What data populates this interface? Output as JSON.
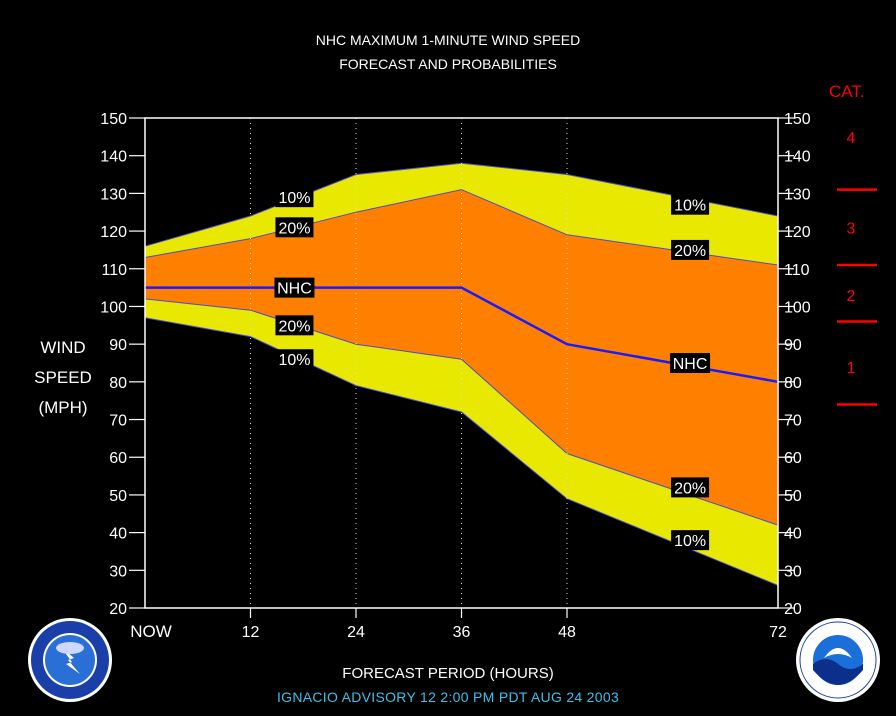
{
  "title_line1": "NHC MAXIMUM 1-MINUTE WIND SPEED",
  "title_line2": "FORECAST AND PROBABILITIES",
  "ylabel_lines": [
    "WIND",
    "SPEED",
    "(MPH)"
  ],
  "xlabel": "FORECAST PERIOD (HOURS)",
  "advisory": "IGNACIO   ADVISORY  12 2:00  PM  PDT  AUG 24  2003",
  "category_header": "CAT.",
  "categories": [
    {
      "label": "4",
      "value": 145
    },
    {
      "label": "3",
      "value": 121
    },
    {
      "label": "2",
      "value": 103
    },
    {
      "label": "1",
      "value": 84
    }
  ],
  "category_thresholds": [
    131,
    111,
    96,
    74
  ],
  "colors": {
    "background": "#000000",
    "outer_band": "#e8e800",
    "inner_band": "#ff8000",
    "nhc_line": "#1a1aff",
    "band_edge": "#4b4bd6",
    "category": "#ff0000",
    "advisory_text": "#3ec0e8"
  },
  "logos": {
    "left": "nws-logo",
    "right": "noaa-logo"
  },
  "chart_data": {
    "type": "area",
    "x": [
      0,
      12,
      24,
      36,
      48,
      72
    ],
    "x_tick_labels": [
      "NOW",
      "12",
      "24",
      "36",
      "48",
      "72"
    ],
    "xlim": [
      0,
      72
    ],
    "ylim": [
      20,
      150
    ],
    "y_ticks": [
      20,
      30,
      40,
      50,
      60,
      70,
      80,
      90,
      100,
      110,
      120,
      130,
      140,
      150
    ],
    "grid": "vertical dotted at 12, 24, 36, 48",
    "series": [
      {
        "name": "10%",
        "role": "upper_outer",
        "values": [
          116,
          124,
          135,
          138,
          135,
          124
        ]
      },
      {
        "name": "20%",
        "role": "upper_inner",
        "values": [
          113,
          118,
          125,
          131,
          119,
          111
        ]
      },
      {
        "name": "NHC",
        "role": "forecast",
        "values": [
          105,
          105,
          105,
          105,
          90,
          80
        ]
      },
      {
        "name": "20%",
        "role": "lower_inner",
        "values": [
          102,
          99,
          90,
          86,
          61,
          42
        ]
      },
      {
        "name": "10%",
        "role": "lower_outer",
        "values": [
          97,
          92,
          79,
          72,
          49,
          26
        ]
      }
    ],
    "annotations": [
      {
        "text": "10%",
        "x": 17,
        "y": 129
      },
      {
        "text": "20%",
        "x": 17,
        "y": 121
      },
      {
        "text": "NHC",
        "x": 17,
        "y": 105
      },
      {
        "text": "20%",
        "x": 17,
        "y": 95
      },
      {
        "text": "10%",
        "x": 17,
        "y": 86
      },
      {
        "text": "10%",
        "x": 62,
        "y": 127
      },
      {
        "text": "20%",
        "x": 62,
        "y": 115
      },
      {
        "text": "NHC",
        "x": 62,
        "y": 85
      },
      {
        "text": "20%",
        "x": 62,
        "y": 52
      },
      {
        "text": "10%",
        "x": 62,
        "y": 38
      }
    ]
  }
}
